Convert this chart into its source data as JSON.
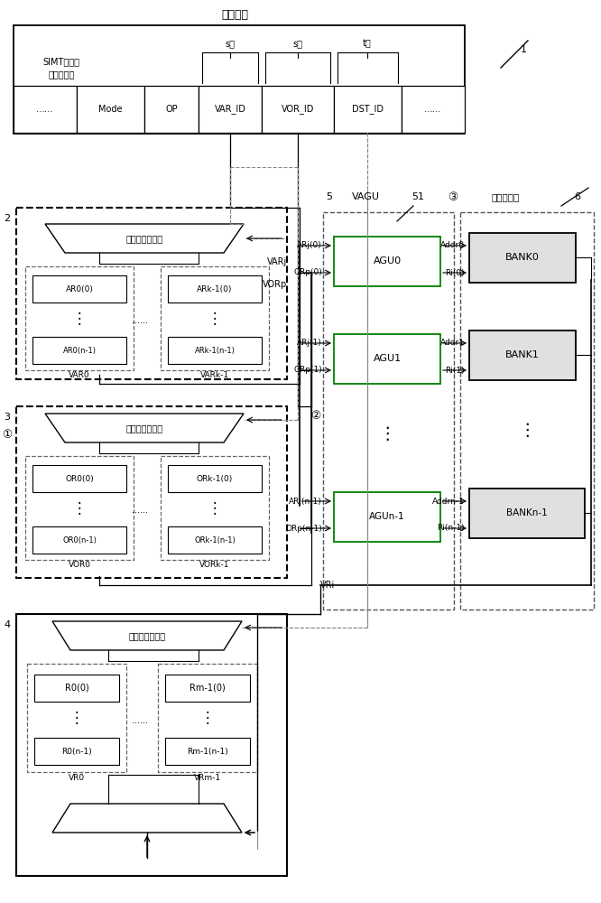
{
  "title": "指令译码",
  "bg_color": "#ffffff",
  "green_color": "#008000",
  "label1": "1",
  "label2": "2",
  "label3": "3",
  "label4": "4",
  "label5": "5",
  "label6": "6",
  "label_circle1": "①",
  "label_circle2": "②",
  "label_circle3": "③",
  "label_51": "51",
  "instr_title": "指令译码",
  "instr_format_line1": "SIMT向量访",
  "instr_format_line2": "存指令格式",
  "instr_cells": [
    "……",
    "Mode",
    "OP",
    "VAR_ID",
    "VOR_ID",
    "DST_ID",
    "……"
  ],
  "s_bit1": "s位",
  "s_bit2": "s位",
  "t_bit": "t位",
  "vagu_label": "VAGU",
  "vmem_label": "向量存储体",
  "reg_sel_label": "寄存器组选择器",
  "ar0_0": "AR0(0)",
  "ar0_n1": "AR0(n-1)",
  "ark_0": "ARk-1(0)",
  "ark_n1": "ARk-1(n-1)",
  "var0_label": "VAR0",
  "vark1_label": "VARk-1",
  "or0_0": "OR0(0)",
  "or0_n1": "OR0(n-1)",
  "ork_0": "ORk-1(0)",
  "ork_n1": "ORk-1(n-1)",
  "vor0_label": "VOR0",
  "vork1_label": "VORk-1",
  "r0_0": "R0(0)",
  "r0_n1": "R0(n-1)",
  "rm_0": "Rm-1(0)",
  "rm_n1": "Rm-1(n-1)",
  "vr0_label": "VR0",
  "vrm1_label": "VRm-1",
  "varj": "VARj",
  "vorp": "VORp",
  "vri": "VRi",
  "arj0": "ARj(0)",
  "orp0": "ORp(0)",
  "agu0": "AGU0",
  "addr0": "Addr0",
  "bank0": "BANK0",
  "ri0": "Ri(0)",
  "arj1": "ARj(1)",
  "orp1": "ORp(1)",
  "agu1": "AGU1",
  "addr1": "Addr1",
  "bank1": "BANK1",
  "ri1": "Ri(1)",
  "arjn": "ARj(n-1)",
  "orpn": "ORp(n-1)",
  "agun": "AGUn-1",
  "addrn": "Addrn-1",
  "bankn": "BANKn-1",
  "rin": "Ri(n-1)"
}
